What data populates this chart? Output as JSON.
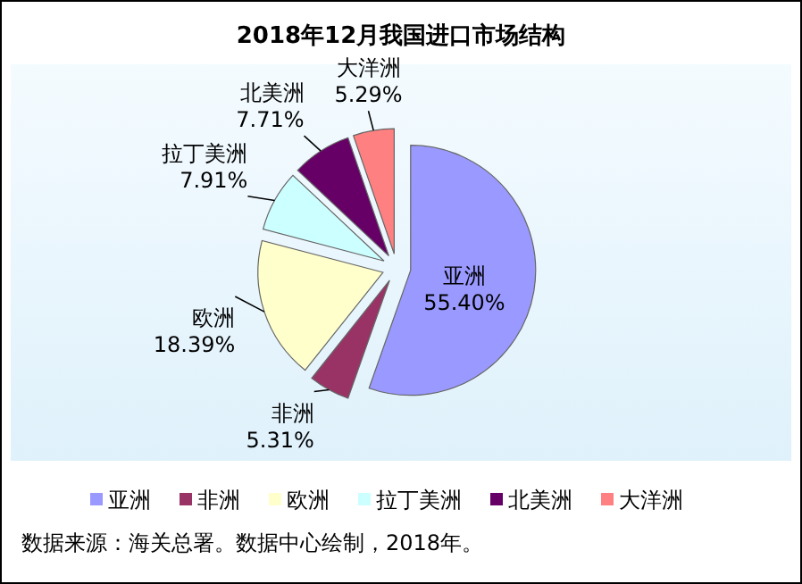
{
  "chart_data": {
    "type": "pie",
    "title": "2018年12月我国进口市场结构",
    "categories": [
      "亚洲",
      "非洲",
      "欧洲",
      "拉丁美洲",
      "北美洲",
      "大洋洲"
    ],
    "values": [
      55.4,
      5.31,
      18.39,
      7.91,
      7.71,
      5.29
    ],
    "value_labels": [
      "55.40%",
      "5.31%",
      "18.39%",
      "7.91%",
      "7.71%",
      "5.29%"
    ],
    "colors": [
      "#9999ff",
      "#993366",
      "#ffffcc",
      "#ccffff",
      "#660066",
      "#ff8080"
    ],
    "legend": "bottom",
    "annotations": [
      "数据来源：海关总署。数据中心绘制，2018年。"
    ]
  }
}
